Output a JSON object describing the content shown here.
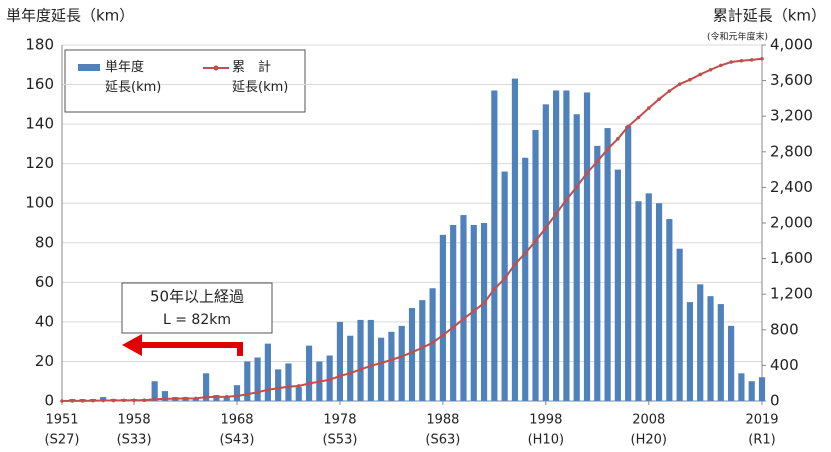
{
  "chart_data": {
    "type": "bar_line",
    "y_title": "単年度延長（km）",
    "y2_title": "累計延長（km）",
    "y2_note": "(令和元年度末)",
    "annotation": {
      "text": "50年以上経過",
      "subtext": "L = 82km"
    },
    "x": [
      1951,
      1952,
      1953,
      1954,
      1955,
      1956,
      1957,
      1958,
      1959,
      1960,
      1961,
      1962,
      1963,
      1964,
      1965,
      1966,
      1967,
      1968,
      1969,
      1970,
      1971,
      1972,
      1973,
      1974,
      1975,
      1976,
      1977,
      1978,
      1979,
      1980,
      1981,
      1982,
      1983,
      1984,
      1985,
      1986,
      1987,
      1988,
      1989,
      1990,
      1991,
      1992,
      1993,
      1994,
      1995,
      1996,
      1997,
      1998,
      1999,
      2000,
      2001,
      2002,
      2003,
      2004,
      2005,
      2006,
      2007,
      2008,
      2009,
      2010,
      2011,
      2012,
      2013,
      2014,
      2015,
      2016,
      2017,
      2018,
      2019
    ],
    "xlim": [
      1951,
      2019
    ],
    "xticks": [
      1951,
      1958,
      1968,
      1978,
      1988,
      1998,
      2008,
      2019
    ],
    "xtick_eras": [
      "(S27)",
      "(S33)",
      "(S43)",
      "(S53)",
      "(S63)",
      "(H10)",
      "(H20)",
      "(R1)"
    ],
    "series": [
      {
        "name": "単年度\n延長(km)",
        "color": "#4f81bd",
        "type": "bar",
        "values": [
          0,
          1,
          1,
          1,
          2,
          1,
          1,
          1,
          1,
          10,
          5,
          2,
          2,
          1,
          14,
          3,
          2,
          8,
          20,
          22,
          29,
          16,
          19,
          7,
          28,
          20,
          23,
          40,
          33,
          41,
          41,
          32,
          35,
          38,
          47,
          51,
          57,
          84,
          89,
          94,
          89,
          90,
          157,
          116,
          163,
          123,
          137,
          150,
          157,
          157,
          145,
          156,
          129,
          138,
          117,
          139,
          101,
          105,
          100,
          92,
          77,
          50,
          59,
          53,
          49,
          38,
          14,
          10,
          12
        ]
      },
      {
        "name": "累　計\n延長(km)",
        "color": "#c0504d",
        "type": "line",
        "axis": "y2",
        "values": [
          0,
          1,
          2,
          3,
          5,
          6,
          7,
          8,
          9,
          19,
          24,
          26,
          28,
          29,
          43,
          46,
          48,
          56,
          76,
          98,
          127,
          143,
          162,
          169,
          197,
          217,
          240,
          280,
          313,
          354,
          395,
          427,
          462,
          500,
          547,
          598,
          655,
          739,
          828,
          922,
          1011,
          1101,
          1258,
          1374,
          1537,
          1660,
          1797,
          1947,
          2104,
          2261,
          2406,
          2562,
          2691,
          2829,
          2946,
          3085,
          3186,
          3291,
          3391,
          3483,
          3560,
          3610,
          3669,
          3722,
          3771,
          3809,
          3823,
          3833,
          3845
        ]
      }
    ],
    "ylim": [
      0,
      180
    ],
    "yticks": [
      0,
      20,
      40,
      60,
      80,
      100,
      120,
      140,
      160,
      180
    ],
    "y2lim": [
      0,
      4000
    ],
    "y2ticks": [
      0,
      400,
      800,
      {
        "value": 1200,
        "label": "1,200"
      },
      {
        "value": 1600,
        "label": "1,600"
      },
      {
        "value": 2000,
        "label": "2,000"
      },
      {
        "value": 2400,
        "label": "2,400"
      },
      {
        "value": 2800,
        "label": "2,800"
      },
      {
        "value": 3200,
        "label": "3,200"
      },
      {
        "value": 3600,
        "label": "3,600"
      },
      {
        "value": 4000,
        "label": "4,000"
      }
    ],
    "grid": true
  }
}
